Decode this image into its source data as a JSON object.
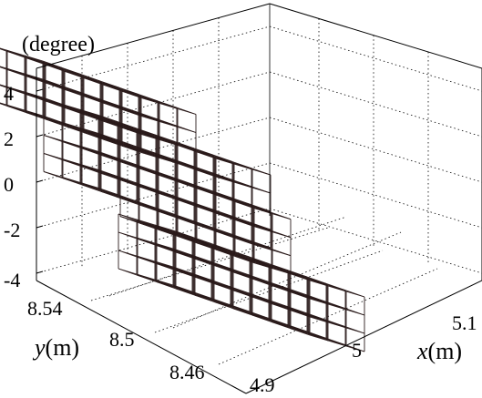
{
  "chart_data": {
    "type": "3d-voxel",
    "z_unit_label": "(degree)",
    "z_ticks": [
      "4",
      "2",
      "0",
      "-2",
      "-4"
    ],
    "x_ticks": [
      "5.1",
      "5",
      "4.9"
    ],
    "y_ticks": [
      "8.54",
      "8.5",
      "8.46"
    ],
    "x_label_var": "x",
    "x_label_unit": "(m)",
    "y_label_var": "y",
    "y_label_unit": "(m)",
    "x_range": [
      4.9,
      5.15
    ],
    "y_range": [
      8.44,
      8.56
    ],
    "z_range": [
      -4,
      4.5
    ],
    "grid": true,
    "edge_color": "#2a1a1a",
    "voxel_count_note": "",
    "voxels": []
  }
}
